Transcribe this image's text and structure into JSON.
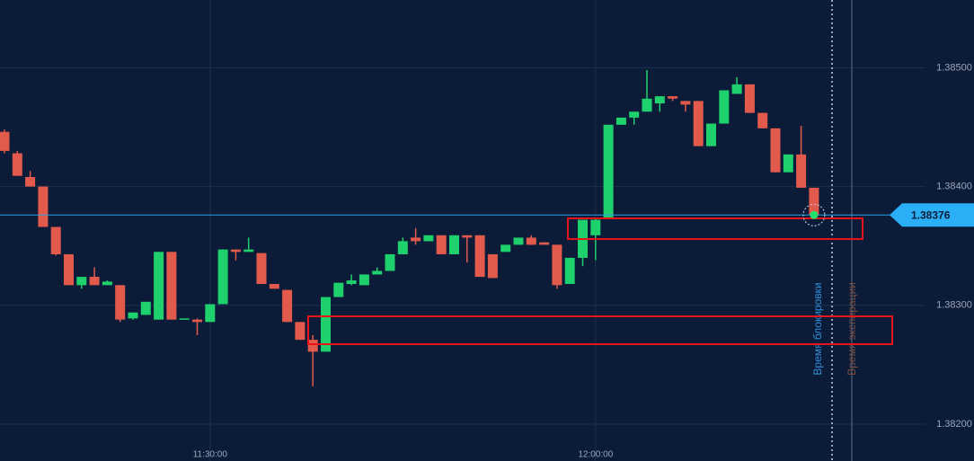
{
  "chart_data": {
    "type": "candlestick",
    "categories": [
      null,
      null,
      null,
      null,
      null,
      null,
      null,
      null,
      null,
      null,
      null,
      null,
      null,
      null,
      null,
      null,
      "11:30:00",
      null,
      null,
      null,
      null,
      null,
      null,
      null,
      null,
      null,
      null,
      null,
      null,
      null,
      null,
      null,
      null,
      null,
      null,
      null,
      null,
      null,
      null,
      null,
      null,
      null,
      null,
      null,
      null,
      null,
      "12:00:00",
      null,
      null,
      null,
      null,
      null,
      null,
      null,
      null,
      null,
      null,
      null,
      null,
      null,
      null,
      null,
      null,
      null
    ],
    "open": [
      1.38446,
      1.38428,
      1.38408,
      1.384,
      1.38366,
      1.38343,
      1.38317,
      1.38324,
      1.38317,
      1.38317,
      1.38289,
      1.38292,
      1.38288,
      1.38345,
      1.38288,
      1.38288,
      1.38286,
      1.38301,
      1.38347,
      1.38345,
      1.38344,
      1.38318,
      1.38313,
      1.38286,
      1.38271,
      1.38261,
      1.38307,
      1.38318,
      1.38317,
      1.38326,
      1.38329,
      1.38343,
      1.38357,
      1.38354,
      1.38359,
      1.38343,
      1.38359,
      1.38359,
      1.38343,
      1.38345,
      1.38351,
      1.38357,
      1.38353,
      1.38351,
      1.38318,
      1.3834,
      1.38359,
      1.38374,
      1.38452,
      1.38458,
      1.38463,
      1.3847,
      1.38476,
      1.38472,
      1.38472,
      1.38434,
      1.38453,
      1.38478,
      1.38486,
      1.38462,
      1.38449,
      1.38412,
      1.38427,
      1.38399
    ],
    "high": [
      1.38448,
      1.3843,
      1.38413,
      1.384,
      1.38366,
      1.38343,
      1.38324,
      1.38332,
      1.38321,
      1.38317,
      1.38294,
      1.38303,
      1.38345,
      1.38345,
      1.38289,
      1.38289,
      1.38301,
      1.38347,
      1.38347,
      1.38357,
      1.38344,
      1.38318,
      1.38313,
      1.38286,
      1.38275,
      1.38307,
      1.38319,
      1.38326,
      1.38326,
      1.38332,
      1.38343,
      1.38357,
      1.38365,
      1.38359,
      1.38359,
      1.38359,
      1.38359,
      1.38359,
      1.38343,
      1.38351,
      1.38357,
      1.38359,
      1.38353,
      1.38351,
      1.3834,
      1.38372,
      1.38373,
      1.38452,
      1.38458,
      1.38463,
      1.38498,
      1.38476,
      1.38476,
      1.38472,
      1.38472,
      1.38453,
      1.38481,
      1.38492,
      1.38486,
      1.38462,
      1.38449,
      1.38427,
      1.38451,
      1.38399
    ],
    "low": [
      1.38428,
      1.38409,
      1.384,
      1.38366,
      1.38342,
      1.38317,
      1.38314,
      1.38317,
      1.38317,
      1.38286,
      1.38288,
      1.38292,
      1.38288,
      1.38288,
      1.38288,
      1.38275,
      1.38286,
      1.38301,
      1.38338,
      1.38345,
      1.38318,
      1.38314,
      1.38286,
      1.38271,
      1.38232,
      1.38261,
      1.38307,
      1.38317,
      1.38317,
      1.38326,
      1.38329,
      1.38343,
      1.38351,
      1.38354,
      1.38343,
      1.38343,
      1.38336,
      1.38324,
      1.38323,
      1.38345,
      1.38351,
      1.38351,
      1.38351,
      1.38314,
      1.38318,
      1.38333,
      1.38338,
      1.38374,
      1.38452,
      1.38452,
      1.38463,
      1.38463,
      1.38472,
      1.38463,
      1.38434,
      1.38434,
      1.38453,
      1.38478,
      1.38462,
      1.38449,
      1.38412,
      1.38412,
      1.38399,
      1.38376
    ],
    "close": [
      1.3843,
      1.38409,
      1.384,
      1.38366,
      1.38343,
      1.38317,
      1.38324,
      1.38317,
      1.3832,
      1.38288,
      1.38294,
      1.38303,
      1.38345,
      1.38288,
      1.38289,
      1.38286,
      1.38301,
      1.38347,
      1.38345,
      1.38347,
      1.38318,
      1.38314,
      1.38286,
      1.38271,
      1.38261,
      1.38307,
      1.38319,
      1.38321,
      1.38326,
      1.38329,
      1.38343,
      1.38354,
      1.38354,
      1.38359,
      1.38343,
      1.38359,
      1.38357,
      1.38324,
      1.38323,
      1.38351,
      1.38357,
      1.38351,
      1.38351,
      1.38317,
      1.3834,
      1.38372,
      1.38372,
      1.38452,
      1.38458,
      1.38463,
      1.38474,
      1.38476,
      1.38474,
      1.38469,
      1.38434,
      1.38453,
      1.38481,
      1.38486,
      1.38462,
      1.38449,
      1.38412,
      1.38427,
      1.38399,
      1.38376
    ],
    "up_color": "#1fd16c",
    "down_color": "#e25a4b",
    "ylim": [
      1.38169,
      1.38557
    ],
    "yticks": [
      {
        "value": 1.382,
        "label": "1.38200"
      },
      {
        "value": 1.383,
        "label": "1.38300"
      },
      {
        "value": 1.384,
        "label": "1.38400"
      },
      {
        "value": 1.385,
        "label": "1.38500"
      }
    ],
    "grid": true,
    "current_price": 1.38376,
    "lock_label": "Время блокировки",
    "expiry_label": "Время экспирации"
  }
}
